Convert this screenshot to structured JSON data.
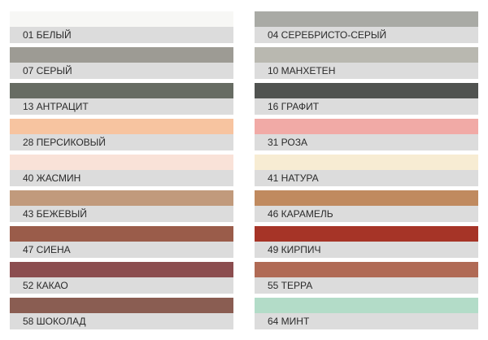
{
  "swatches": [
    {
      "label": "01 БЕЛЫЙ",
      "color": "#f7f7f5"
    },
    {
      "label": "04 СЕРЕБРИСТО-СЕРЫЙ",
      "color": "#a9aaa5"
    },
    {
      "label": "07 СЕРЫЙ",
      "color": "#9d9b94"
    },
    {
      "label": "10 МАНХЕТЕН",
      "color": "#b9b8b0"
    },
    {
      "label": "13 АНТРАЦИТ",
      "color": "#676c63"
    },
    {
      "label": "16 ГРАФИТ",
      "color": "#505350"
    },
    {
      "label": "28 ПЕРСИКОВЫЙ",
      "color": "#f7c4a0"
    },
    {
      "label": "31 РОЗА",
      "color": "#f1aaa6"
    },
    {
      "label": "40 ЖАСМИН",
      "color": "#f9e2d8"
    },
    {
      "label": "41 НАТУРА",
      "color": "#f7ecd3"
    },
    {
      "label": "43 БЕЖЕВЫЙ",
      "color": "#c19a7c"
    },
    {
      "label": "46 КАРАМЕЛЬ",
      "color": "#c08a5f"
    },
    {
      "label": "47 СИЕНА",
      "color": "#9a5c4a"
    },
    {
      "label": "49 КИРПИЧ",
      "color": "#a63427"
    },
    {
      "label": "52 КАКАО",
      "color": "#8b4d4f"
    },
    {
      "label": "55 ТЕРРА",
      "color": "#b06a55"
    },
    {
      "label": "58 ШОКОЛАД",
      "color": "#8a5d52"
    },
    {
      "label": "64 МИНТ",
      "color": "#b3dcc8"
    }
  ]
}
